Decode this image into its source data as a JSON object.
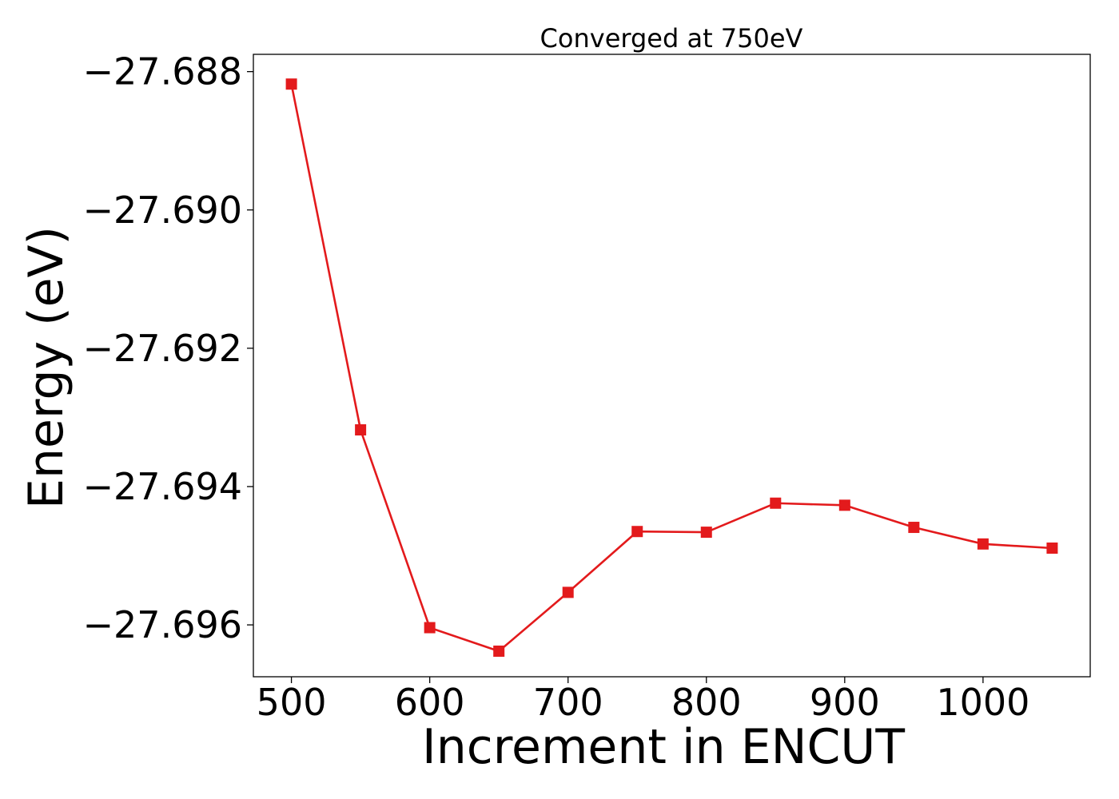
{
  "chart_data": {
    "type": "line",
    "title": "Converged at 750eV",
    "xlabel": "Increment in ENCUT",
    "ylabel": "Energy (eV)",
    "x": [
      500,
      550,
      600,
      650,
      700,
      750,
      800,
      850,
      900,
      950,
      1000,
      1050
    ],
    "series": [
      {
        "values": [
          -27.68818,
          -27.69318,
          -27.69604,
          -27.69638,
          -27.69553,
          -27.69465,
          -27.69466,
          -27.69424,
          -27.69427,
          -27.69459,
          -27.69483,
          -27.69489
        ],
        "color": "#e31a1c",
        "marker": "square"
      }
    ],
    "xlim": [
      472.5,
      1077.5
    ],
    "ylim": [
      -27.69675,
      -27.68775
    ],
    "xticks": [
      500,
      600,
      700,
      800,
      900,
      1000
    ],
    "xtick_labels": [
      "500",
      "600",
      "700",
      "800",
      "900",
      "1000"
    ],
    "yticks": [
      -27.688,
      -27.69,
      -27.692,
      -27.694,
      -27.696
    ],
    "ytick_labels": [
      "−27.688",
      "−27.690",
      "−27.692",
      "−27.694",
      "−27.696"
    ],
    "grid": false,
    "legend": "none"
  }
}
